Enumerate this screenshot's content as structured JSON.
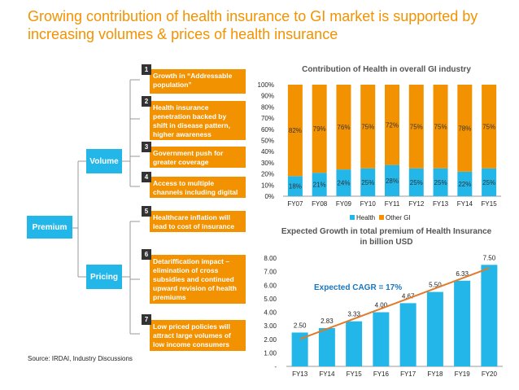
{
  "title": "Growing contribution of health insurance to GI market is supported by increasing volumes & prices of health insurance",
  "tree": {
    "root": "Premium",
    "volume": "Volume",
    "pricing": "Pricing",
    "reasons": [
      {
        "num": "1",
        "text": "Growth in “Addressable population”"
      },
      {
        "num": "2",
        "text": "Health insurance penetration backed by shift in disease pattern, higher awareness"
      },
      {
        "num": "3",
        "text": "Government push for greater coverage"
      },
      {
        "num": "4",
        "text": "Access to multiple channels including digital"
      },
      {
        "num": "5",
        "text": "Healthcare inflation will lead to cost of insurance"
      },
      {
        "num": "6",
        "text": "Detariffication impact – elimination of cross subsidies and continued upward revision of health premiums"
      },
      {
        "num": "7",
        "text": "Low priced policies will attract large volumes of low income consumers"
      }
    ]
  },
  "source": "Source: IRDAI, Industry Discussions",
  "colors": {
    "orange": "#f39200",
    "blue": "#23b6e8",
    "line": "#e07b2a",
    "cagr": "#1a75bc"
  },
  "chart_data": [
    {
      "type": "bar",
      "stacked": true,
      "title": "Contribution of Health in overall GI industry",
      "categories": [
        "FY07",
        "FY08",
        "FY09",
        "FY10",
        "FY11",
        "FY12",
        "FY13",
        "FY14",
        "FY15"
      ],
      "series": [
        {
          "name": "Health",
          "values": [
            18,
            21,
            24,
            25,
            28,
            25,
            25,
            22,
            25
          ]
        },
        {
          "name": "Other GI",
          "values": [
            82,
            79,
            76,
            75,
            72,
            75,
            75,
            78,
            75
          ]
        }
      ],
      "yticks": [
        "0%",
        "10%",
        "20%",
        "30%",
        "40%",
        "50%",
        "60%",
        "70%",
        "80%",
        "90%",
        "100%"
      ],
      "ylim": [
        0,
        100
      ],
      "legend": "bottom"
    },
    {
      "type": "bar",
      "title": "Expected Growth in total premium of Health Insurance in billion USD",
      "categories": [
        "FY13",
        "FY14",
        "FY15",
        "FY16",
        "FY17",
        "FY18",
        "FY19",
        "FY20"
      ],
      "values": [
        2.5,
        2.83,
        3.33,
        4.0,
        4.67,
        5.5,
        6.33,
        7.5
      ],
      "labels": [
        "2.50",
        "2.83",
        "3.33",
        "4.00",
        "4.67",
        "5.50",
        "6.33",
        "7.50"
      ],
      "yticks": [
        "-",
        "1.00",
        "2.00",
        "3.00",
        "4.00",
        "5.00",
        "6.00",
        "7.00",
        "8.00"
      ],
      "ylim": [
        0,
        8
      ],
      "annotation": "Expected CAGR = 17%",
      "trendline": true
    }
  ]
}
